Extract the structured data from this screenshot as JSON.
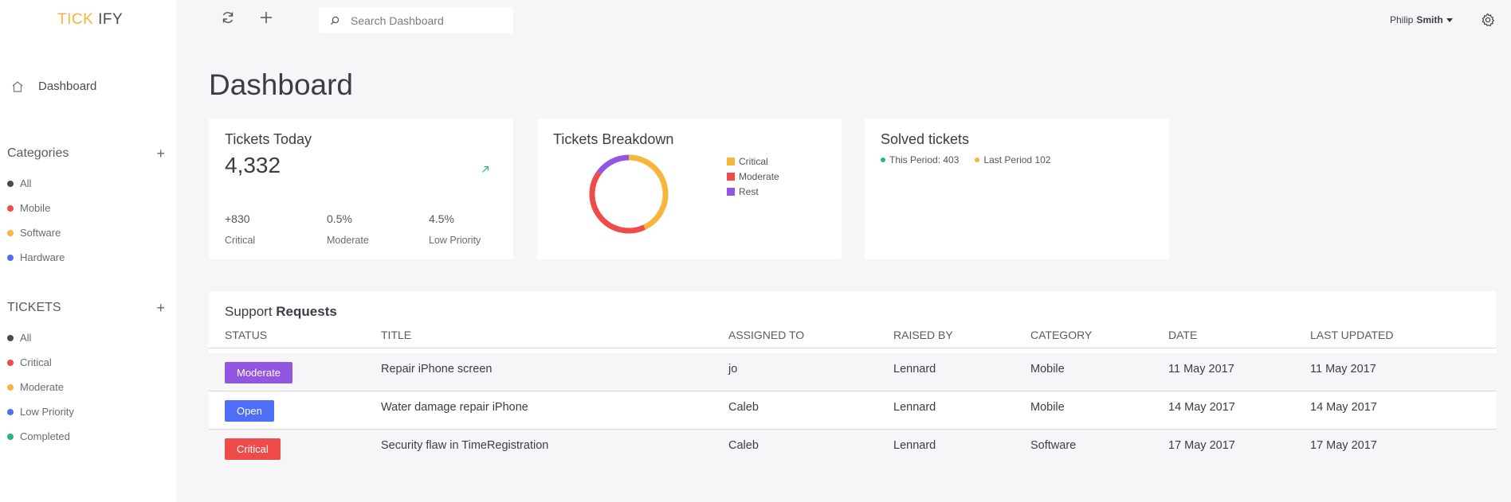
{
  "app": {
    "logo_part1": "TICK",
    "logo_part2": "IFY"
  },
  "sidebar": {
    "dashboard_label": "Dashboard",
    "categories_title": "Categories",
    "categories": [
      {
        "label": "All",
        "color": "#4a4a54"
      },
      {
        "label": "Mobile",
        "color": "#ee4b4b"
      },
      {
        "label": "Software",
        "color": "#f8b53b"
      },
      {
        "label": "Hardware",
        "color": "#4d6ef5"
      }
    ],
    "tickets_title": "TICKETS",
    "tickets": [
      {
        "label": "All",
        "color": "#4a4a54"
      },
      {
        "label": "Critical",
        "color": "#ee4b4b"
      },
      {
        "label": "Moderate",
        "color": "#f8b53b"
      },
      {
        "label": "Low Priority",
        "color": "#4d6ef5"
      },
      {
        "label": "Completed",
        "color": "#2bb57a"
      }
    ]
  },
  "topbar": {
    "search_placeholder": "Search Dashboard",
    "user_first": "Philip",
    "user_last": "Smith"
  },
  "page": {
    "title": "Dashboard"
  },
  "tickets_today": {
    "title": "Tickets Today",
    "total": "4,332",
    "stats": [
      {
        "value": "+830",
        "label": "Critical"
      },
      {
        "value": "0.5%",
        "label": "Moderate"
      },
      {
        "value": "4.5%",
        "label": "Low Priority"
      }
    ]
  },
  "breakdown": {
    "title": "Tickets Breakdown",
    "legend": [
      {
        "label": "Critical",
        "color": "#f8b53b"
      },
      {
        "label": "Moderate",
        "color": "#ee4b4b"
      },
      {
        "label": "Rest",
        "color": "#9256e0"
      }
    ]
  },
  "chart_data": {
    "type": "pie",
    "title": "Tickets Breakdown",
    "categories": [
      "Critical",
      "Moderate",
      "Rest"
    ],
    "values": [
      43,
      42,
      15
    ],
    "colors": [
      "#f8b53b",
      "#ee4b4b",
      "#9256e0"
    ],
    "donut": true,
    "legend": "right"
  },
  "solved": {
    "title": "Solved tickets",
    "this_period": "This Period: 403",
    "last_period": "Last Period 102",
    "this_color": "#2bb57a",
    "last_color": "#f8b53b"
  },
  "requests": {
    "title_part1": "Support",
    "title_part2": "Requests",
    "columns": [
      "STATUS",
      "TITLE",
      "ASSIGNED TO",
      "RAISED BY",
      "CATEGORY",
      "DATE",
      "LAST UPDATED"
    ],
    "rows": [
      {
        "status": "Moderate",
        "status_color": "#9256e0",
        "title": "Repair iPhone screen",
        "assigned": "jo",
        "raised": "Lennard",
        "category": "Mobile",
        "date": "11 May 2017",
        "updated": "11 May 2017"
      },
      {
        "status": "Open",
        "status_color": "#4d6ef5",
        "title": "Water damage repair iPhone",
        "assigned": "Caleb",
        "raised": "Lennard",
        "category": "Mobile",
        "date": "14 May 2017",
        "updated": "14 May 2017"
      },
      {
        "status": "Critical",
        "status_color": "#ee4b4b",
        "title": "Security flaw in TimeRegistration",
        "assigned": "Caleb",
        "raised": "Lennard",
        "category": "Software",
        "date": "17 May 2017",
        "updated": "17 May 2017"
      }
    ]
  }
}
